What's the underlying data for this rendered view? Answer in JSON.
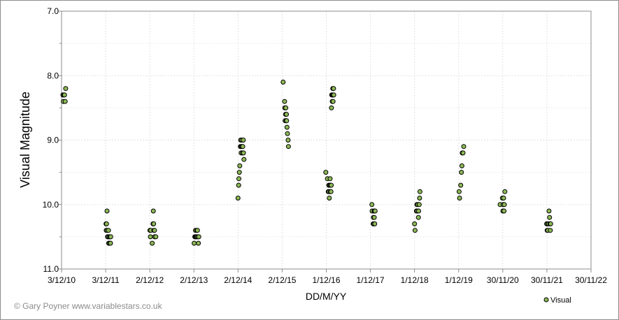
{
  "chart_data": {
    "type": "scatter",
    "xlabel": "DD/M/YY",
    "ylabel": "Visual Magnitude",
    "credit": "© Gary Poyner  www.variablestars.co.uk",
    "y_inverted": true,
    "ylim": [
      7.0,
      11.0
    ],
    "y_ticks": [
      "7.0",
      "8.0",
      "9.0",
      "10.0",
      "11.0"
    ],
    "x_ticks": [
      "3/12/10",
      "3/12/11",
      "2/12/12",
      "2/12/13",
      "2/12/14",
      "2/12/15",
      "1/12/16",
      "1/12/17",
      "1/12/18",
      "1/12/19",
      "30/11/20",
      "30/11/21",
      "30/11/22"
    ],
    "grid": true,
    "legend_position": "bottom-right",
    "series": [
      {
        "name": "Visual",
        "color": "#8db856",
        "points": [
          [
            "14/12/10",
            8.3
          ],
          [
            "18/12/10",
            8.4
          ],
          [
            "22/12/10",
            8.3
          ],
          [
            "28/12/10",
            8.3
          ],
          [
            "2/1/11",
            8.4
          ],
          [
            "6/1/11",
            8.2
          ],
          [
            "6/12/11",
            10.3
          ],
          [
            "8/12/11",
            10.4
          ],
          [
            "10/12/11",
            10.3
          ],
          [
            "14/12/11",
            10.1
          ],
          [
            "15/12/11",
            10.4
          ],
          [
            "19/12/11",
            10.5
          ],
          [
            "23/12/11",
            10.5
          ],
          [
            "26/12/11",
            10.4
          ],
          [
            "28/12/11",
            10.6
          ],
          [
            "1/1/12",
            10.5
          ],
          [
            "5/1/12",
            10.6
          ],
          [
            "9/1/12",
            10.5
          ],
          [
            "12/1/12",
            10.6
          ],
          [
            "14/1/12",
            10.5
          ],
          [
            "3/12/12",
            10.4
          ],
          [
            "7/12/12",
            10.5
          ],
          [
            "11/12/12",
            10.4
          ],
          [
            "22/12/12",
            10.6
          ],
          [
            "29/12/12",
            10.3
          ],
          [
            "31/12/12",
            10.1
          ],
          [
            "3/1/13",
            10.3
          ],
          [
            "5/1/13",
            10.4
          ],
          [
            "10/1/13",
            10.4
          ],
          [
            "11/1/13",
            10.5
          ],
          [
            "21/1/13",
            10.5
          ],
          [
            "4/12/13",
            10.6
          ],
          [
            "9/12/13",
            10.5
          ],
          [
            "14/12/13",
            10.5
          ],
          [
            "15/12/13",
            10.4
          ],
          [
            "20/12/13",
            10.5
          ],
          [
            "24/12/13",
            10.4
          ],
          [
            "26/12/13",
            10.5
          ],
          [
            "31/12/13",
            10.4
          ],
          [
            "3/1/14",
            10.5
          ],
          [
            "8/1/14",
            10.6
          ],
          [
            "11/1/14",
            10.5
          ],
          [
            "2/12/14",
            9.9
          ],
          [
            "7/12/14",
            9.7
          ],
          [
            "9/12/14",
            9.6
          ],
          [
            "13/12/14",
            9.5
          ],
          [
            "16/12/14",
            9.4
          ],
          [
            "21/12/14",
            9.1
          ],
          [
            "24/12/14",
            9.0
          ],
          [
            "28/12/14",
            9.2
          ],
          [
            "29/12/14",
            9.1
          ],
          [
            "2/1/15",
            9.0
          ],
          [
            "3/1/15",
            9.1
          ],
          [
            "8/1/15",
            9.2
          ],
          [
            "10/1/15",
            9.1
          ],
          [
            "14/1/15",
            9.0
          ],
          [
            "16/1/15",
            9.2
          ],
          [
            "20/1/15",
            9.3
          ],
          [
            "10/12/15",
            8.1
          ],
          [
            "22/12/15",
            8.4
          ],
          [
            "24/12/15",
            8.5
          ],
          [
            "27/12/15",
            8.7
          ],
          [
            "30/12/15",
            8.6
          ],
          [
            "1/1/16",
            8.5
          ],
          [
            "4/1/16",
            8.7
          ],
          [
            "6/1/16",
            8.6
          ],
          [
            "8/1/16",
            8.7
          ],
          [
            "11/1/16",
            8.8
          ],
          [
            "15/1/16",
            8.9
          ],
          [
            "20/1/16",
            9.0
          ],
          [
            "23/1/16",
            9.1
          ],
          [
            "27/11/16",
            9.5
          ],
          [
            "10/12/16",
            9.6
          ],
          [
            "17/12/16",
            9.8
          ],
          [
            "21/12/16",
            9.7
          ],
          [
            "24/12/16",
            9.8
          ],
          [
            "26/12/16",
            9.9
          ],
          [
            "30/12/16",
            9.7
          ],
          [
            "2/1/17",
            9.6
          ],
          [
            "4/1/17",
            9.8
          ],
          [
            "6/1/17",
            9.7
          ],
          [
            "9/1/17",
            9.8
          ],
          [
            "11/1/17",
            9.7
          ],
          [
            "13/1/17",
            8.5
          ],
          [
            "15/1/17",
            8.3
          ],
          [
            "18/1/17",
            8.3
          ],
          [
            "20/1/17",
            8.4
          ],
          [
            "22/1/17",
            8.3
          ],
          [
            "24/1/17",
            8.2
          ],
          [
            "26/1/17",
            8.4
          ],
          [
            "28/1/17",
            8.3
          ],
          [
            "30/1/17",
            8.2
          ],
          [
            "1/2/17",
            8.3
          ],
          [
            "13/12/17",
            10.0
          ],
          [
            "15/12/17",
            10.1
          ],
          [
            "24/12/17",
            10.3
          ],
          [
            "26/12/17",
            10.2
          ],
          [
            "29/12/17",
            10.3
          ],
          [
            "31/12/17",
            10.1
          ],
          [
            "2/1/18",
            10.2
          ],
          [
            "4/1/18",
            10.1
          ],
          [
            "6/1/18",
            10.3
          ],
          [
            "9/1/18",
            10.1
          ],
          [
            "1/12/18",
            10.3
          ],
          [
            "5/12/18",
            10.4
          ],
          [
            "17/12/18",
            10.1
          ],
          [
            "20/12/18",
            10.0
          ],
          [
            "24/12/18",
            10.1
          ],
          [
            "28/12/18",
            10.0
          ],
          [
            "2/1/19",
            10.2
          ],
          [
            "4/1/19",
            10.1
          ],
          [
            "9/1/19",
            10.0
          ],
          [
            "12/1/19",
            9.9
          ],
          [
            "15/1/19",
            9.8
          ],
          [
            "5/12/19",
            9.8
          ],
          [
            "9/12/19",
            9.9
          ],
          [
            "18/12/19",
            9.7
          ],
          [
            "24/12/19",
            9.5
          ],
          [
            "28/12/19",
            9.4
          ],
          [
            "31/12/19",
            9.2
          ],
          [
            "6/1/20",
            9.2
          ],
          [
            "12/1/20",
            9.1
          ],
          [
            "8/11/20",
            10.0
          ],
          [
            "27/11/20",
            9.9
          ],
          [
            "1/12/20",
            10.1
          ],
          [
            "4/12/20",
            10.0
          ],
          [
            "7/12/20",
            9.9
          ],
          [
            "10/12/20",
            10.1
          ],
          [
            "13/12/20",
            10.0
          ],
          [
            "17/12/20",
            9.8
          ],
          [
            "28/11/21",
            10.3
          ],
          [
            "2/12/21",
            10.4
          ],
          [
            "5/12/21",
            10.3
          ],
          [
            "8/12/21",
            10.4
          ],
          [
            "14/12/21",
            10.3
          ],
          [
            "17/12/21",
            10.1
          ],
          [
            "22/12/21",
            10.2
          ],
          [
            "26/12/21",
            10.3
          ],
          [
            "28/12/21",
            10.4
          ],
          [
            "31/12/21",
            10.3
          ]
        ]
      }
    ]
  }
}
